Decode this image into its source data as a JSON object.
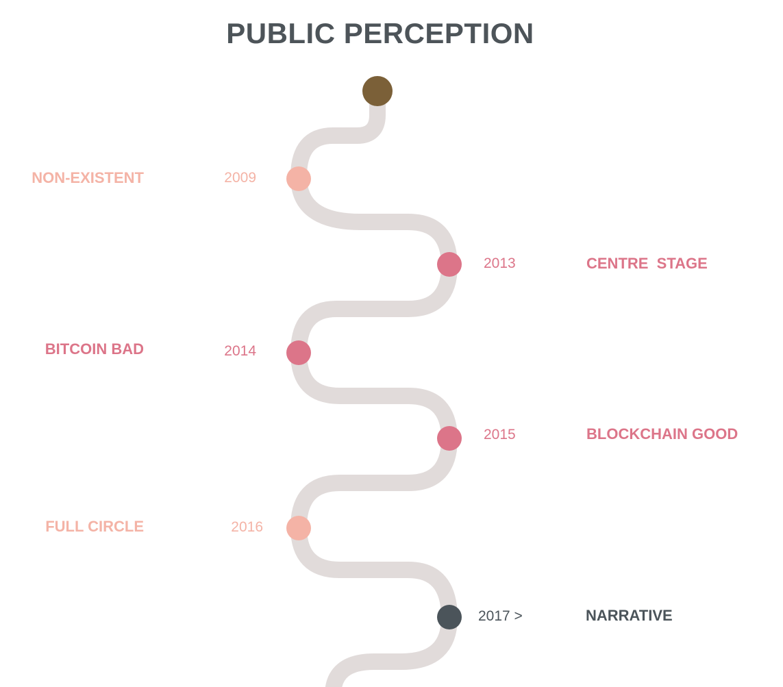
{
  "title": "PUBLIC PERCEPTION",
  "colors": {
    "path": "#e1dbda",
    "start_node": "#7b6038",
    "light_pink": "#f4b3a6",
    "rose": "#dc7589",
    "dark": "#4b545a"
  },
  "events": [
    {
      "year": "2009",
      "label": "NON-EXISTENT",
      "side": "left",
      "color": "#f4b3a6"
    },
    {
      "year": "2013",
      "label": "CENTRE  STAGE",
      "side": "right",
      "color": "#dc7589"
    },
    {
      "year": "2014",
      "label": "BITCOIN BAD",
      "side": "left",
      "color": "#dc7589"
    },
    {
      "year": "2015",
      "label": "BLOCKCHAIN GOOD",
      "side": "right",
      "color": "#dc7589"
    },
    {
      "year": "2016",
      "label": "FULL CIRCLE",
      "side": "left",
      "color": "#f4b3a6"
    },
    {
      "year": "2017 >",
      "label": "NARRATIVE",
      "side": "right",
      "color": "#4b545a"
    }
  ]
}
